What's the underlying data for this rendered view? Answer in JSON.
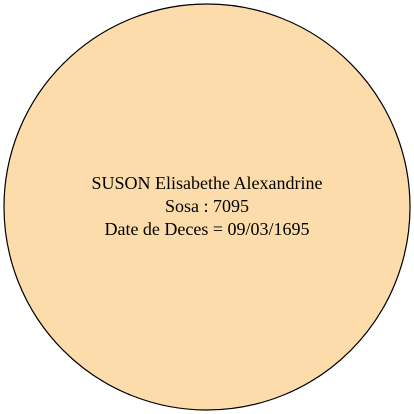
{
  "node": {
    "name": "SUSON Elisabethe Alexandrine",
    "sosa": "Sosa : 7095",
    "death": "Date de Deces = 09/03/1695"
  },
  "colors": {
    "fill": "#fddcac",
    "stroke": "#000000",
    "background": "#ffffff"
  }
}
